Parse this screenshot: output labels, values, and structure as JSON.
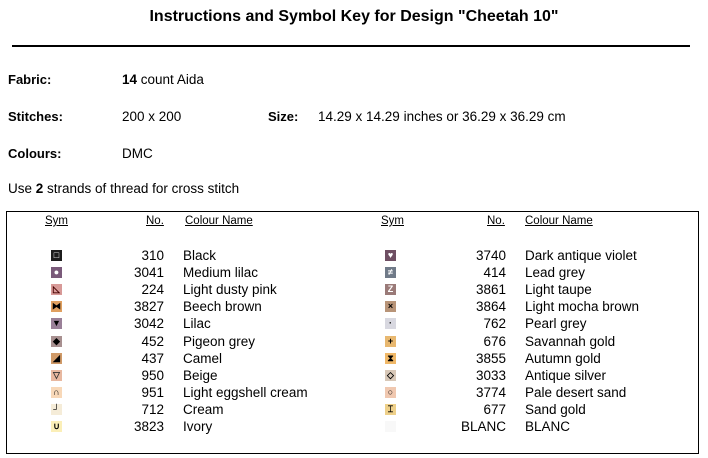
{
  "title": "Instructions and Symbol Key for Design \"Cheetah 10\"",
  "fabric": {
    "label": "Fabric:",
    "count": "14",
    "rest": " count Aida"
  },
  "stitches": {
    "label": "Stitches:",
    "value": "200 x 200"
  },
  "size": {
    "label": "Size:",
    "value": "14.29 x 14.29 inches or 36.29 x 36.29 cm"
  },
  "colours": {
    "label": "Colours:",
    "value": "DMC"
  },
  "instruction": {
    "pre": "Use ",
    "strands": "2",
    "post": " strands of thread for cross stitch"
  },
  "headers": {
    "sym": "Sym",
    "no": "No.",
    "name": "Colour Name"
  },
  "left": [
    {
      "glyph": "□",
      "color": "#1c1c1c",
      "fg": "#fff",
      "no": "310",
      "name": "Black"
    },
    {
      "glyph": "●",
      "color": "#7a5a7a",
      "fg": "#fff",
      "no": "3041",
      "name": "Medium lilac"
    },
    {
      "glyph": "◺",
      "color": "#d89a98",
      "fg": "#400",
      "no": "224",
      "name": "Light dusty pink"
    },
    {
      "glyph": "⧓",
      "color": "#e0a060",
      "fg": "#000",
      "no": "3827",
      "name": "Beech brown"
    },
    {
      "glyph": "▼",
      "color": "#9a8098",
      "fg": "#000",
      "no": "3042",
      "name": "Lilac"
    },
    {
      "glyph": "◆",
      "color": "#a89090",
      "fg": "#000",
      "no": "452",
      "name": "Pigeon grey"
    },
    {
      "glyph": "◢",
      "color": "#d09a68",
      "fg": "#000",
      "no": "437",
      "name": "Camel"
    },
    {
      "glyph": "▽",
      "color": "#e8b8a0",
      "fg": "#333",
      "no": "950",
      "name": "Beige"
    },
    {
      "glyph": "∩",
      "color": "#f8d8b8",
      "fg": "#000",
      "no": "951",
      "name": "Light eggshell cream"
    },
    {
      "glyph": "┘",
      "color": "#f5ecd8",
      "fg": "#000",
      "no": "712",
      "name": "Cream"
    },
    {
      "glyph": "∪",
      "color": "#fbefb8",
      "fg": "#000",
      "no": "3823",
      "name": "Ivory"
    }
  ],
  "right": [
    {
      "glyph": "♥",
      "color": "#6e4e62",
      "fg": "#fff",
      "no": "3740",
      "name": "Dark antique violet"
    },
    {
      "glyph": "≠",
      "color": "#707a88",
      "fg": "#fff",
      "no": "414",
      "name": "Lead grey"
    },
    {
      "glyph": "Z",
      "color": "#9a7a78",
      "fg": "#fff",
      "no": "3861",
      "name": "Light taupe"
    },
    {
      "glyph": "×",
      "color": "#b89478",
      "fg": "#000",
      "no": "3864",
      "name": "Light mocha brown"
    },
    {
      "glyph": "·",
      "color": "#d8d8e0",
      "fg": "#000",
      "no": "762",
      "name": "Pearl grey"
    },
    {
      "glyph": "+",
      "color": "#e8b870",
      "fg": "#000",
      "no": "676",
      "name": "Savannah gold"
    },
    {
      "glyph": "⧗",
      "color": "#f0b868",
      "fg": "#000",
      "no": "3855",
      "name": "Autumn gold"
    },
    {
      "glyph": "◇",
      "color": "#d8c8b8",
      "fg": "#000",
      "no": "3033",
      "name": "Antique silver"
    },
    {
      "glyph": "○",
      "color": "#f0c8b0",
      "fg": "#000",
      "no": "3774",
      "name": "Pale desert sand"
    },
    {
      "glyph": "⌶",
      "color": "#eed08a",
      "fg": "#000",
      "no": "677",
      "name": "Sand gold"
    },
    {
      "glyph": "",
      "color": "#f8f8f8",
      "fg": "#000",
      "no": "BLANC",
      "name": "BLANC"
    }
  ]
}
